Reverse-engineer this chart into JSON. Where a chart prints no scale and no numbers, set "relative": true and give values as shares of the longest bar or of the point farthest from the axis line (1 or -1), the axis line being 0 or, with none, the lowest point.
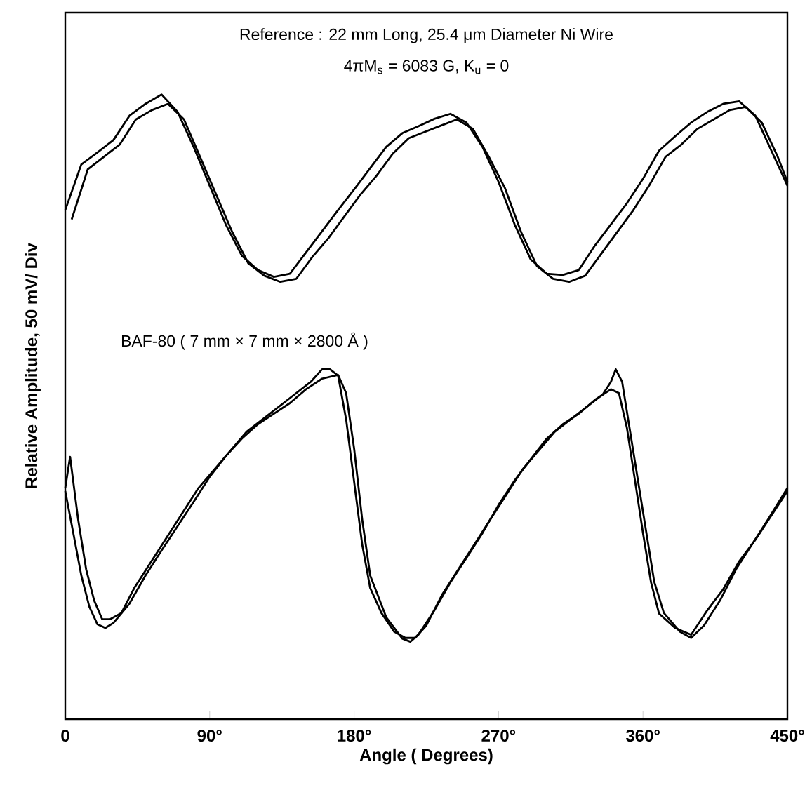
{
  "chart_data": {
    "type": "line",
    "relative": true,
    "title": "Reference : 22 mm Long, 25.4 μm Diameter Ni Wire",
    "subtitle": "4πM$_{s}$ = 6083 G, K$_{u}$ = 0",
    "xlabel": "Angle ( Degrees)",
    "ylabel": "Relative Amplitude,  50 mV/ Div",
    "xlim": [
      0,
      450
    ],
    "xticks": [
      0,
      {
        "value": 90,
        "label": "90°"
      },
      {
        "value": 180,
        "label": "180°"
      },
      {
        "value": 270,
        "label": "270°"
      },
      {
        "value": 360,
        "label": "360°"
      },
      {
        "value": 450,
        "label": "450°"
      }
    ],
    "annotations": [
      "BAF-80 ( 7 mm × 7 mm × 2800 Å )"
    ],
    "grid": false,
    "marker": "none",
    "line_style": "solid",
    "series": [
      {
        "color": "#000000",
        "x": [
          0,
          10,
          20,
          30,
          40,
          50,
          60,
          70,
          80,
          90,
          100,
          110,
          120,
          130,
          140,
          150,
          160,
          170,
          180,
          190,
          200,
          210,
          220,
          230,
          240,
          250,
          260,
          270,
          280,
          290,
          300,
          310,
          320,
          330,
          340,
          350,
          360,
          370,
          380,
          390,
          400,
          410,
          420,
          430,
          440,
          450
        ],
        "values": [
          0.815,
          0.888,
          0.907,
          0.927,
          0.966,
          0.985,
          1.0,
          0.972,
          0.916,
          0.854,
          0.792,
          0.742,
          0.719,
          0.708,
          0.713,
          0.747,
          0.781,
          0.815,
          0.848,
          0.882,
          0.916,
          0.938,
          0.949,
          0.961,
          0.969,
          0.955,
          0.916,
          0.86,
          0.792,
          0.736,
          0.713,
          0.711,
          0.719,
          0.758,
          0.792,
          0.826,
          0.865,
          0.91,
          0.933,
          0.955,
          0.972,
          0.985,
          0.989,
          0.966,
          0.91,
          0.854
        ]
      },
      {
        "color": "#000000",
        "x": [
          4,
          14,
          24,
          34,
          44,
          54,
          64,
          74,
          84,
          94,
          104,
          114,
          124,
          134,
          144,
          154,
          164,
          174,
          184,
          194,
          204,
          214,
          224,
          234,
          244,
          254,
          264,
          274,
          284,
          294,
          304,
          314,
          324,
          334,
          344,
          354,
          364,
          374,
          384,
          394,
          404,
          414,
          424,
          434,
          444,
          450
        ],
        "values": [
          0.8,
          0.88,
          0.9,
          0.92,
          0.96,
          0.975,
          0.985,
          0.96,
          0.9,
          0.84,
          0.78,
          0.73,
          0.71,
          0.7,
          0.705,
          0.74,
          0.77,
          0.805,
          0.84,
          0.87,
          0.905,
          0.93,
          0.94,
          0.95,
          0.96,
          0.945,
          0.9,
          0.85,
          0.78,
          0.725,
          0.705,
          0.7,
          0.71,
          0.745,
          0.78,
          0.815,
          0.855,
          0.9,
          0.92,
          0.945,
          0.96,
          0.975,
          0.98,
          0.955,
          0.9,
          0.86
        ]
      },
      {
        "color": "#000000",
        "x": [
          0,
          5,
          10,
          15,
          20,
          25,
          30,
          40,
          50,
          60,
          70,
          80,
          90,
          100,
          110,
          120,
          130,
          140,
          150,
          160,
          170,
          175,
          180,
          185,
          190,
          200,
          210,
          215,
          220,
          230,
          240,
          250,
          260,
          270,
          280,
          290,
          300,
          310,
          320,
          330,
          340,
          345,
          350,
          355,
          360,
          365,
          370,
          380,
          390,
          400,
          410,
          420,
          430,
          440,
          450
        ],
        "values": [
          0.365,
          0.298,
          0.23,
          0.18,
          0.152,
          0.146,
          0.154,
          0.185,
          0.23,
          0.27,
          0.309,
          0.348,
          0.388,
          0.421,
          0.449,
          0.472,
          0.489,
          0.506,
          0.528,
          0.545,
          0.551,
          0.522,
          0.433,
          0.32,
          0.23,
          0.163,
          0.129,
          0.124,
          0.135,
          0.174,
          0.219,
          0.258,
          0.298,
          0.343,
          0.382,
          0.416,
          0.449,
          0.472,
          0.489,
          0.511,
          0.528,
          0.522,
          0.466,
          0.382,
          0.298,
          0.219,
          0.169,
          0.146,
          0.135,
          0.174,
          0.208,
          0.253,
          0.287,
          0.326,
          0.365
        ]
      },
      {
        "color": "#000000",
        "x": [
          0,
          3,
          8,
          13,
          18,
          23,
          28,
          35,
          43,
          53,
          63,
          73,
          83,
          93,
          103,
          113,
          123,
          133,
          143,
          153,
          160,
          165,
          170,
          175,
          180,
          185,
          190,
          197,
          205,
          212,
          218,
          225,
          235,
          245,
          255,
          265,
          275,
          285,
          295,
          305,
          315,
          325,
          335,
          340,
          343,
          347,
          352,
          357,
          362,
          367,
          373,
          383,
          390,
          398,
          408,
          418,
          428,
          438,
          450
        ],
        "values": [
          0.37,
          0.42,
          0.32,
          0.24,
          0.19,
          0.16,
          0.16,
          0.17,
          0.21,
          0.25,
          0.29,
          0.33,
          0.37,
          0.4,
          0.43,
          0.46,
          0.48,
          0.5,
          0.52,
          0.54,
          0.56,
          0.56,
          0.55,
          0.48,
          0.38,
          0.28,
          0.21,
          0.17,
          0.14,
          0.13,
          0.13,
          0.15,
          0.2,
          0.24,
          0.28,
          0.32,
          0.36,
          0.4,
          0.43,
          0.46,
          0.48,
          0.5,
          0.52,
          0.54,
          0.56,
          0.54,
          0.46,
          0.38,
          0.3,
          0.22,
          0.17,
          0.14,
          0.13,
          0.15,
          0.19,
          0.24,
          0.28,
          0.32,
          0.37
        ]
      }
    ]
  }
}
